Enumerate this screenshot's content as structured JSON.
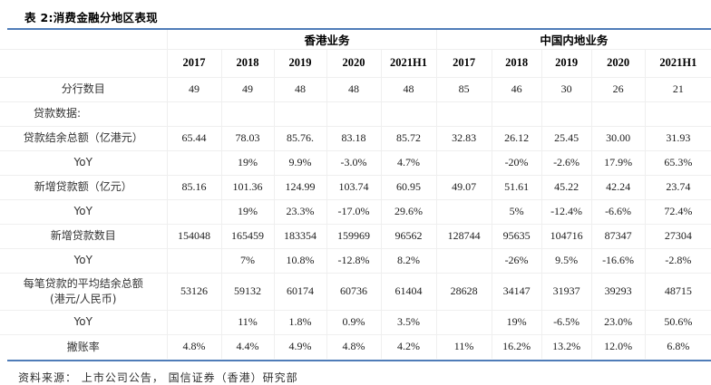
{
  "title": "表 2:消费金融分地区表现",
  "source": "资料来源： 上市公司公告， 国信证券（香港）研究部",
  "colors": {
    "accent_blue": "#4f7cb8",
    "grid_gray": "#efefef",
    "text_black": "#1c1c1c"
  },
  "table": {
    "region_headers": [
      "香港业务",
      "中国内地业务"
    ],
    "year_headers": [
      "2017",
      "2018",
      "2019",
      "2020",
      "2021H1",
      "2017",
      "2018",
      "2019",
      "2020",
      "2021H1"
    ],
    "rows": [
      {
        "label": "分行数目",
        "values": [
          "49",
          "49",
          "48",
          "48",
          "48",
          "85",
          "46",
          "30",
          "26",
          "21"
        ]
      },
      {
        "label": "贷款数据:",
        "align": "left",
        "values": [
          "",
          "",
          "",
          "",
          "",
          "",
          "",
          "",
          "",
          ""
        ]
      },
      {
        "label": "贷款结余总额（亿港元）",
        "values": [
          "65.44",
          "78.03",
          "85.76.",
          "83.18",
          "85.72",
          "32.83",
          "26.12",
          "25.45",
          "30.00",
          "31.93"
        ]
      },
      {
        "label": "YoY",
        "values": [
          "",
          "19%",
          "9.9%",
          "-3.0%",
          "4.7%",
          "",
          "-20%",
          "-2.6%",
          "17.9%",
          "65.3%"
        ]
      },
      {
        "label": "新增贷款额（亿元）",
        "values": [
          "85.16",
          "101.36",
          "124.99",
          "103.74",
          "60.95",
          "49.07",
          "51.61",
          "45.22",
          "42.24",
          "23.74"
        ]
      },
      {
        "label": "YoY",
        "values": [
          "",
          "19%",
          "23.3%",
          "-17.0%",
          "29.6%",
          "",
          "5%",
          "-12.4%",
          "-6.6%",
          "72.4%"
        ]
      },
      {
        "label": "新增贷款数目",
        "values": [
          "154048",
          "165459",
          "183354",
          "159969",
          "96562",
          "128744",
          "95635",
          "104716",
          "87347",
          "27304"
        ]
      },
      {
        "label": "YoY",
        "values": [
          "",
          "7%",
          "10.8%",
          "-12.8%",
          "8.2%",
          "",
          "-26%",
          "9.5%",
          "-16.6%",
          "-2.8%"
        ]
      },
      {
        "label": "每笔贷款的平均结余总额",
        "sublabel": "(港元/人民币)",
        "values": [
          "53126",
          "59132",
          "60174",
          "60736",
          "61404",
          "28628",
          "34147",
          "31937",
          "39293",
          "48715"
        ]
      },
      {
        "label": "YoY",
        "values": [
          "",
          "11%",
          "1.8%",
          "0.9%",
          "3.5%",
          "",
          "19%",
          "-6.5%",
          "23.0%",
          "50.6%"
        ]
      },
      {
        "label": "撇账率",
        "values": [
          "4.8%",
          "4.4%",
          "4.9%",
          "4.8%",
          "4.2%",
          "11%",
          "16.2%",
          "13.2%",
          "12.0%",
          "6.8%"
        ]
      }
    ]
  }
}
